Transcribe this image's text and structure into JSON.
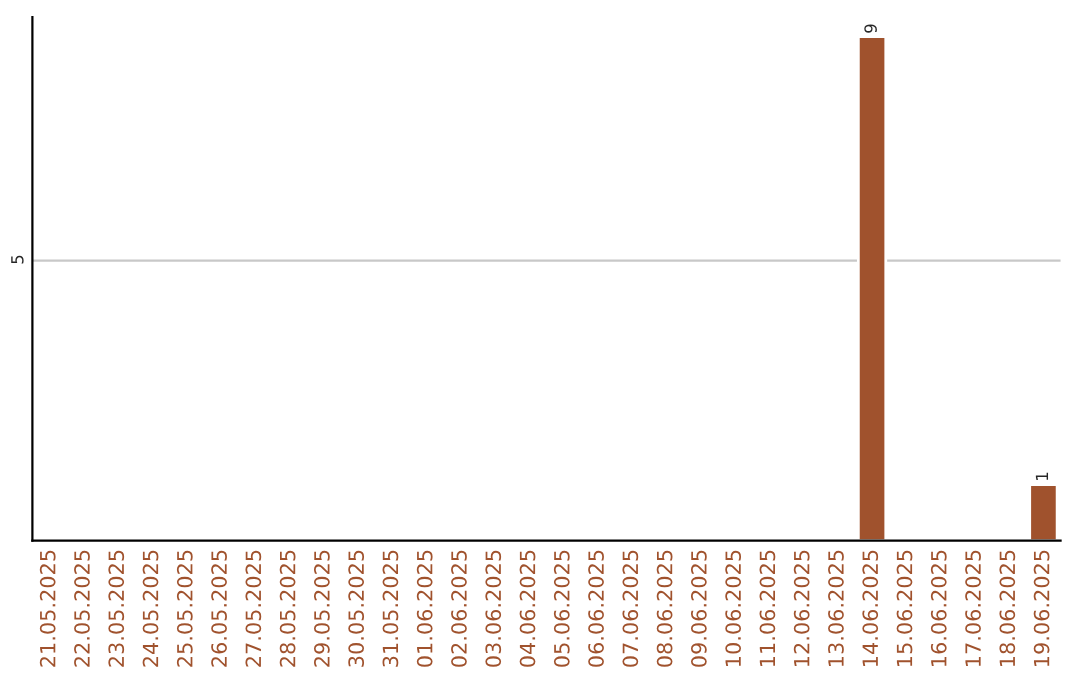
{
  "chart_data": {
    "type": "bar",
    "categories": [
      "21.05.2025",
      "22.05.2025",
      "23.05.2025",
      "24.05.2025",
      "25.05.2025",
      "26.05.2025",
      "27.05.2025",
      "28.05.2025",
      "29.05.2025",
      "30.05.2025",
      "31.05.2025",
      "01.06.2025",
      "02.06.2025",
      "03.06.2025",
      "04.06.2025",
      "05.06.2025",
      "06.06.2025",
      "07.06.2025",
      "08.06.2025",
      "09.06.2025",
      "10.06.2025",
      "11.06.2025",
      "12.06.2025",
      "13.06.2025",
      "14.06.2025",
      "15.06.2025",
      "16.06.2025",
      "17.06.2025",
      "18.06.2025",
      "19.06.2025"
    ],
    "values": [
      null,
      null,
      null,
      null,
      null,
      null,
      null,
      null,
      null,
      null,
      null,
      null,
      null,
      null,
      null,
      null,
      null,
      null,
      null,
      null,
      null,
      null,
      null,
      null,
      9,
      null,
      null,
      null,
      null,
      1
    ],
    "value_labels": [
      null,
      null,
      null,
      null,
      null,
      null,
      null,
      null,
      null,
      null,
      null,
      null,
      null,
      null,
      null,
      null,
      null,
      null,
      null,
      null,
      null,
      null,
      null,
      null,
      "9",
      null,
      null,
      null,
      null,
      "1"
    ],
    "color": "#a0522d",
    "ylim": [
      0,
      9.35
    ],
    "yticks": [
      5
    ],
    "grid": "y"
  }
}
